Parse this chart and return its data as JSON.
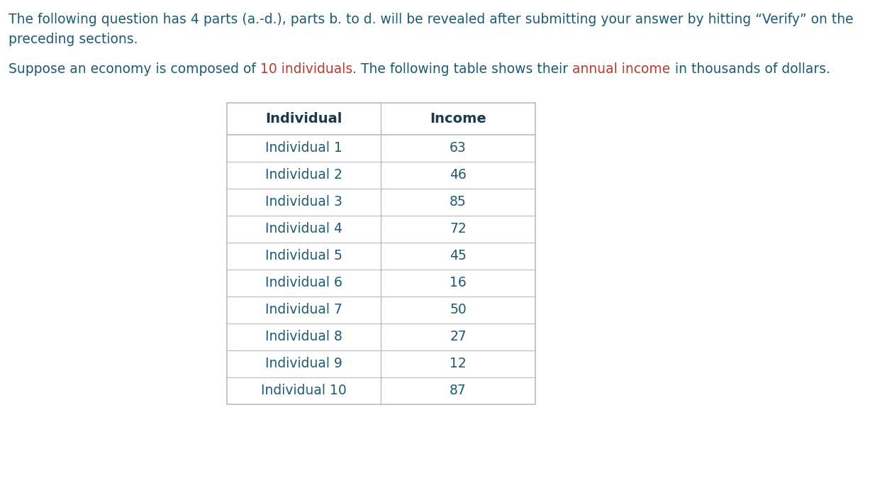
{
  "para1_seg1": "The following question has 4 parts (a.-d.), parts b. to d. will be revealed after submitting your answer by hitting “Verify” on the",
  "para1_seg2": "preceding sections.",
  "para2_seg1": "Suppose an economy is composed of ",
  "para2_seg2": "10 individuals",
  "para2_seg3": ". The following table shows their ",
  "para2_seg4": "annual income",
  "para2_seg5": " in thousands of dollars.",
  "col_headers": [
    "Individual",
    "Income"
  ],
  "rows": [
    [
      "Individual 1",
      "63"
    ],
    [
      "Individual 2",
      "46"
    ],
    [
      "Individual 3",
      "85"
    ],
    [
      "Individual 4",
      "72"
    ],
    [
      "Individual 5",
      "45"
    ],
    [
      "Individual 6",
      "16"
    ],
    [
      "Individual 7",
      "50"
    ],
    [
      "Individual 8",
      "27"
    ],
    [
      "Individual 9",
      "12"
    ],
    [
      "Individual 10",
      "87"
    ]
  ],
  "text_color_normal": "#1a5c78",
  "text_color_highlight": "#c0392b",
  "header_color": "#1a3a4a",
  "table_text_color": "#1a5c78",
  "bg_color": "#ffffff",
  "table_line_color": "#bbbbbb",
  "font_size_para": 13.5,
  "font_size_table": 13.5,
  "font_size_header": 14.0
}
